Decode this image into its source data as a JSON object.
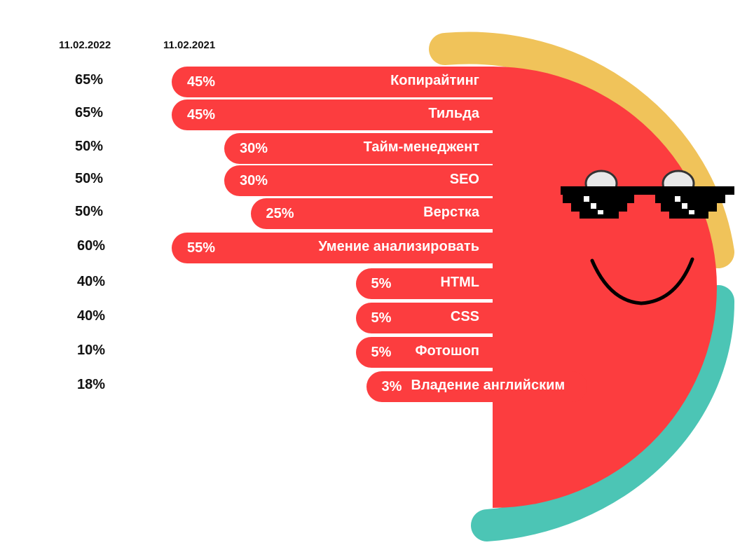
{
  "chart_data": {
    "type": "bar",
    "orientation": "horizontal",
    "series": [
      {
        "name": "11.02.2022",
        "values": [
          65,
          65,
          50,
          50,
          50,
          60,
          40,
          40,
          10,
          18
        ]
      },
      {
        "name": "11.02.2021",
        "values": [
          45,
          45,
          30,
          30,
          25,
          55,
          5,
          5,
          5,
          3
        ]
      }
    ],
    "categories": [
      "Копирайтинг",
      "Тильда",
      "Тайм-менеджент",
      "SEO",
      "Верстка",
      "Умение анализировать",
      "HTML",
      "CSS",
      "Фотошоп",
      "Владение английским"
    ],
    "value_suffix": "%",
    "colors": {
      "bar": "#fc3d3f",
      "face": "#fc3d3f",
      "top_arc": "#f0c35a",
      "bottom_arc": "#4cc5b5",
      "glasses": "#000000"
    }
  }
}
